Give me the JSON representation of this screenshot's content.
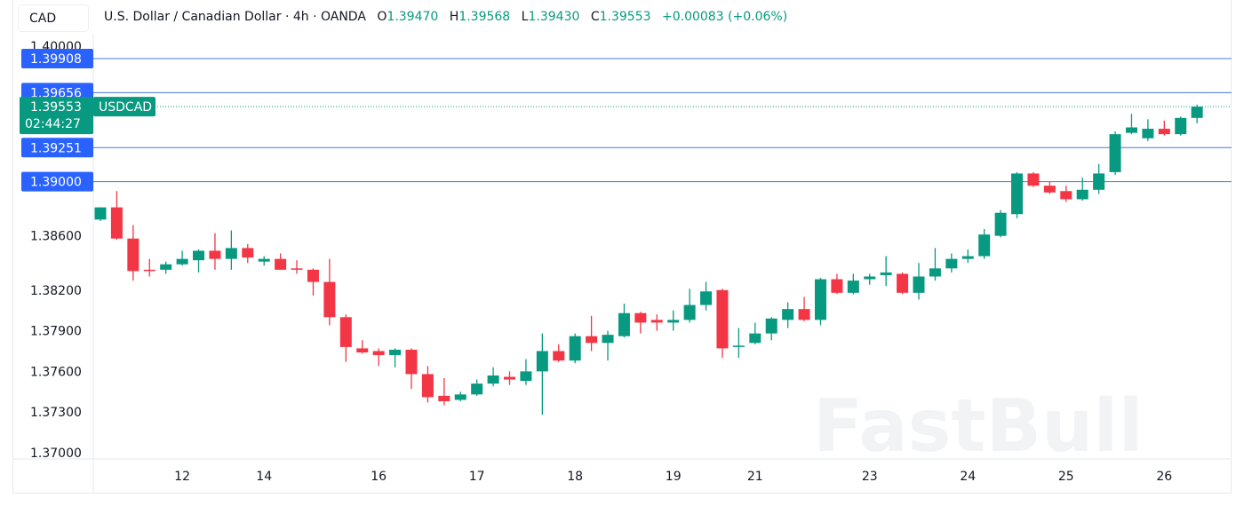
{
  "symbol_box": "CAD",
  "header": {
    "title": "U.S. Dollar / Canadian Dollar · 4h · OANDA",
    "open_label": "O",
    "open": "1.39470",
    "high_label": "H",
    "high": "1.39568",
    "low_label": "L",
    "low": "1.39430",
    "close_label": "C",
    "close": "1.39553",
    "change": "+0.00083 (+0.06%)"
  },
  "watermark": "FastBull",
  "colors": {
    "up": "#089981",
    "down": "#f23645",
    "level_line": "#4a78d8",
    "level_label": "#2962ff",
    "current_price": "#089981"
  },
  "chart_data": {
    "type": "candlestick",
    "ylim": [
      1.37,
      1.4005
    ],
    "y_ticks": [
      "1.40000",
      "1.38600",
      "1.38200",
      "1.37900",
      "1.37600",
      "1.37300",
      "1.37000"
    ],
    "x_ticks": [
      {
        "label": "12",
        "index": 5
      },
      {
        "label": "14",
        "index": 10
      },
      {
        "label": "16",
        "index": 17
      },
      {
        "label": "17",
        "index": 23
      },
      {
        "label": "18",
        "index": 29
      },
      {
        "label": "19",
        "index": 35
      },
      {
        "label": "21",
        "index": 40
      },
      {
        "label": "23",
        "index": 47
      },
      {
        "label": "24",
        "index": 53
      },
      {
        "label": "25",
        "index": 59
      },
      {
        "label": "26",
        "index": 65
      }
    ],
    "levels": [
      "1.39908",
      "1.39656",
      "1.39251",
      "1.39000"
    ],
    "current_price": {
      "symbol": "USDCAD",
      "price": "1.39553",
      "countdown": "02:44:27"
    },
    "ohlc": [
      [
        1.3872,
        1.3881,
        1.3871,
        1.3881
      ],
      [
        1.3881,
        1.3893,
        1.3857,
        1.3858
      ],
      [
        1.3858,
        1.3868,
        1.3827,
        1.3834
      ],
      [
        1.3835,
        1.3843,
        1.383,
        1.3834
      ],
      [
        1.3835,
        1.3841,
        1.3832,
        1.3839
      ],
      [
        1.3839,
        1.3849,
        1.3838,
        1.3843
      ],
      [
        1.3842,
        1.385,
        1.3833,
        1.3849
      ],
      [
        1.3849,
        1.3862,
        1.3835,
        1.3843
      ],
      [
        1.3843,
        1.3864,
        1.3835,
        1.3851
      ],
      [
        1.3851,
        1.3854,
        1.384,
        1.3844
      ],
      [
        1.3841,
        1.3845,
        1.3838,
        1.3843
      ],
      [
        1.3843,
        1.3847,
        1.3835,
        1.3835
      ],
      [
        1.3836,
        1.3842,
        1.3832,
        1.3835
      ],
      [
        1.3835,
        1.3836,
        1.3816,
        1.3826
      ],
      [
        1.3826,
        1.3843,
        1.3794,
        1.38
      ],
      [
        1.38,
        1.3802,
        1.3767,
        1.3778
      ],
      [
        1.3777,
        1.3783,
        1.3773,
        1.3774
      ],
      [
        1.3775,
        1.3777,
        1.3764,
        1.3772
      ],
      [
        1.3772,
        1.3777,
        1.3763,
        1.3776
      ],
      [
        1.3776,
        1.3777,
        1.3747,
        1.3758
      ],
      [
        1.3758,
        1.3764,
        1.3737,
        1.3741
      ],
      [
        1.3742,
        1.3755,
        1.3735,
        1.3738
      ],
      [
        1.3739,
        1.3745,
        1.3738,
        1.3743
      ],
      [
        1.3743,
        1.3754,
        1.3742,
        1.3751
      ],
      [
        1.3751,
        1.3763,
        1.3749,
        1.3757
      ],
      [
        1.3756,
        1.376,
        1.375,
        1.3754
      ],
      [
        1.3753,
        1.3769,
        1.375,
        1.376
      ],
      [
        1.376,
        1.3788,
        1.3728,
        1.3775
      ],
      [
        1.3775,
        1.378,
        1.3767,
        1.3768
      ],
      [
        1.3768,
        1.3788,
        1.3766,
        1.3786
      ],
      [
        1.3786,
        1.3801,
        1.3775,
        1.3781
      ],
      [
        1.3781,
        1.379,
        1.3768,
        1.3787
      ],
      [
        1.3786,
        1.381,
        1.3785,
        1.3803
      ],
      [
        1.3803,
        1.3804,
        1.3788,
        1.3796
      ],
      [
        1.3798,
        1.3802,
        1.379,
        1.3796
      ],
      [
        1.3796,
        1.3805,
        1.379,
        1.3798
      ],
      [
        1.3798,
        1.3821,
        1.3796,
        1.3809
      ],
      [
        1.3809,
        1.3826,
        1.3805,
        1.3819
      ],
      [
        1.382,
        1.3821,
        1.377,
        1.3777
      ],
      [
        1.3778,
        1.3792,
        1.377,
        1.3779
      ],
      [
        1.3781,
        1.3796,
        1.378,
        1.3788
      ],
      [
        1.3788,
        1.38,
        1.3783,
        1.3799
      ],
      [
        1.3798,
        1.3811,
        1.3792,
        1.3806
      ],
      [
        1.3806,
        1.3815,
        1.3797,
        1.3798
      ],
      [
        1.3798,
        1.3829,
        1.3794,
        1.3828
      ],
      [
        1.3828,
        1.3832,
        1.3817,
        1.3818
      ],
      [
        1.3818,
        1.3832,
        1.3817,
        1.3827
      ],
      [
        1.3828,
        1.3832,
        1.3824,
        1.383
      ],
      [
        1.3831,
        1.3845,
        1.3823,
        1.3833
      ],
      [
        1.3832,
        1.3833,
        1.3817,
        1.3818
      ],
      [
        1.3818,
        1.384,
        1.3813,
        1.383
      ],
      [
        1.383,
        1.3851,
        1.3827,
        1.3836
      ],
      [
        1.3836,
        1.3847,
        1.3833,
        1.3843
      ],
      [
        1.3843,
        1.385,
        1.384,
        1.3845
      ],
      [
        1.3845,
        1.3865,
        1.3843,
        1.3861
      ],
      [
        1.386,
        1.3879,
        1.3859,
        1.3877
      ],
      [
        1.3876,
        1.3907,
        1.3873,
        1.3906
      ],
      [
        1.3906,
        1.3907,
        1.3896,
        1.3897
      ],
      [
        1.3897,
        1.39,
        1.3891,
        1.3892
      ],
      [
        1.3893,
        1.3897,
        1.3885,
        1.3887
      ],
      [
        1.3887,
        1.3903,
        1.3886,
        1.3894
      ],
      [
        1.3894,
        1.3913,
        1.3891,
        1.3906
      ],
      [
        1.3907,
        1.3937,
        1.3905,
        1.3935
      ],
      [
        1.3936,
        1.395,
        1.3935,
        1.394
      ],
      [
        1.3932,
        1.3946,
        1.393,
        1.3939
      ],
      [
        1.3939,
        1.3945,
        1.3934,
        1.3935
      ],
      [
        1.3935,
        1.3948,
        1.3934,
        1.3947
      ],
      [
        1.3947,
        1.39568,
        1.3943,
        1.39553
      ]
    ]
  }
}
